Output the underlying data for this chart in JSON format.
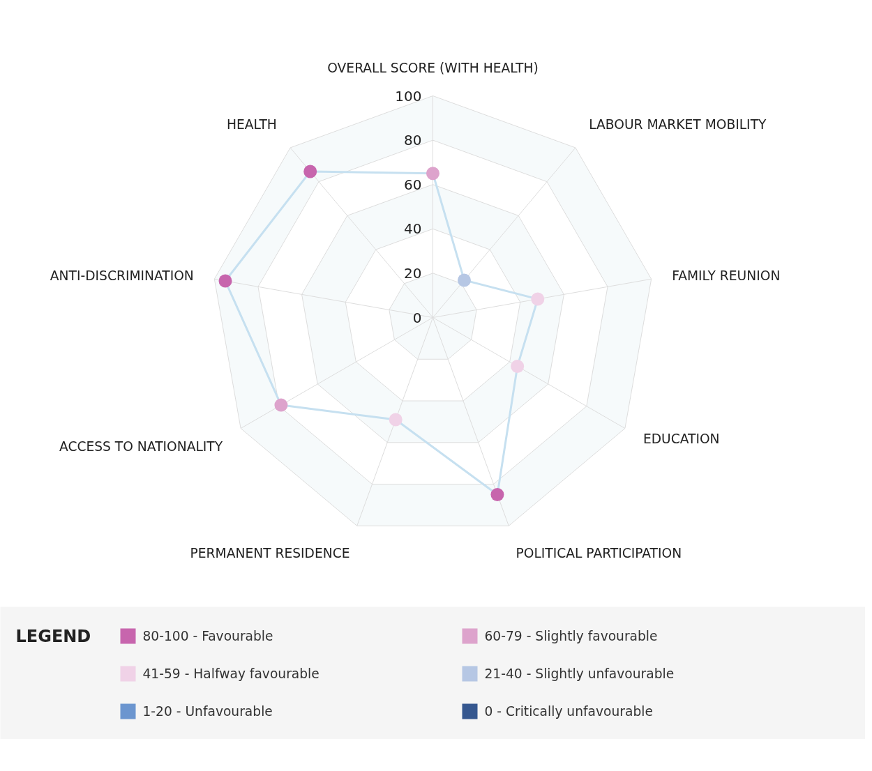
{
  "chart_data": [
    {
      "type": "radar",
      "categories": [
        "OVERALL SCORE (WITH HEALTH)",
        "LABOUR MARKET MOBILITY",
        "FAMILY REUNION",
        "EDUCATION",
        "POLITICAL PARTICIPATION",
        "PERMANENT RESIDENCE",
        "ACCESS TO NATIONALITY",
        "ANTI-DISCRIMINATION",
        "HEALTH"
      ],
      "ylim": [
        0,
        100
      ],
      "yticks": [
        0,
        20,
        40,
        60,
        80,
        100
      ],
      "grid": true,
      "marker": "circle",
      "series": [
        {
          "color": "#c6e0f0",
          "values": [
            65,
            22,
            48,
            44,
            85,
            49,
            79,
            95,
            86
          ],
          "colors": [
            "#dda3cc",
            "#b6c7e4",
            "#f0d2e7",
            "#f0d2e7",
            "#c765ad",
            "#f0d2e7",
            "#dda3cc",
            "#c765ad",
            "#c765ad"
          ]
        }
      ]
    },
    {
      "type": "other",
      "title": "LEGEND",
      "categories": [
        "80-100 - Favourable",
        "60-79 - Slightly favourable",
        "41-59 - Halfway favourable",
        "21-40 - Slightly unfavourable",
        "1-20 - Unfavourable",
        "0 - Critically unfavourable"
      ],
      "colors": [
        "#c765ad",
        "#dda3cc",
        "#f0d2e7",
        "#b6c7e4",
        "#6b95cf",
        "#35578f"
      ]
    }
  ]
}
